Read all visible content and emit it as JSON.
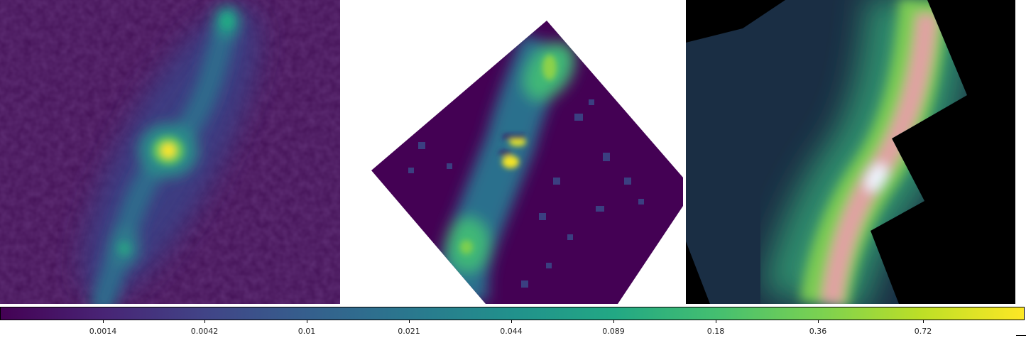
{
  "colorbar": {
    "colormap": "viridis",
    "scale": "log",
    "ticks": [
      "0.0014",
      "0.0042",
      "0.01",
      "0.021",
      "0.044",
      "0.089",
      "0.18",
      "0.36",
      "0.72"
    ]
  },
  "panels": [
    {
      "content": "emission map, bright compact core with diagonal extended structure",
      "colormap": "viridis"
    },
    {
      "content": "rotated square map with diagonal structure and central knot",
      "colormap": "viridis"
    },
    {
      "content": "false-color image of inclined spiral galaxy",
      "colors": [
        "#1b3a4a",
        "#2f8f6a",
        "#7fcf4f",
        "#e8a0a0",
        "#ffffff"
      ]
    }
  ]
}
